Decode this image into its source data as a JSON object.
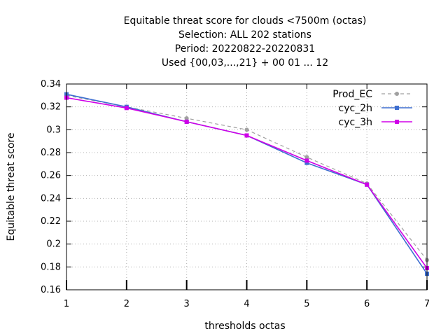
{
  "chart_data": {
    "type": "line",
    "title": [
      "Equitable threat score  for clouds <7500m (octas)",
      "Selection: ALL    202 stations",
      "Period: 20220822-20220831",
      "Used {00,03,...,21} + 00 01 ... 12"
    ],
    "xlabel": "thresholds octas",
    "ylabel": "Equitable threat score",
    "x": [
      1,
      2,
      3,
      4,
      5,
      6,
      7
    ],
    "xlim": [
      1,
      7
    ],
    "ylim": [
      0.16,
      0.34
    ],
    "xticks": [
      1,
      2,
      3,
      4,
      5,
      6,
      7
    ],
    "xtick_labels": [
      "1",
      "2",
      "3",
      "4",
      "5",
      "6",
      "7"
    ],
    "yticks": [
      0.16,
      0.18,
      0.2,
      0.22,
      0.24,
      0.26,
      0.28,
      0.3,
      0.32,
      0.34
    ],
    "ytick_labels": [
      "0.16",
      "0.18",
      "0.2",
      "0.22",
      "0.24",
      "0.26",
      "0.28",
      "0.3",
      "0.32",
      "0.34"
    ],
    "grid": true,
    "legend_position": "top-right",
    "series": [
      {
        "name": "Prod_EC",
        "color": "#a0a0a0",
        "style": "dashed",
        "marker": "circle",
        "values": [
          0.33,
          0.32,
          0.31,
          0.3,
          0.276,
          0.253,
          0.186
        ]
      },
      {
        "name": "cyc_2h",
        "color": "#3f6fd0",
        "style": "solid",
        "marker": "square",
        "values": [
          0.331,
          0.32,
          0.307,
          0.295,
          0.271,
          0.252,
          0.174
        ]
      },
      {
        "name": "cyc_3h",
        "color": "#d000e8",
        "style": "solid",
        "marker": "square",
        "values": [
          0.328,
          0.319,
          0.307,
          0.295,
          0.273,
          0.252,
          0.179
        ]
      }
    ]
  }
}
